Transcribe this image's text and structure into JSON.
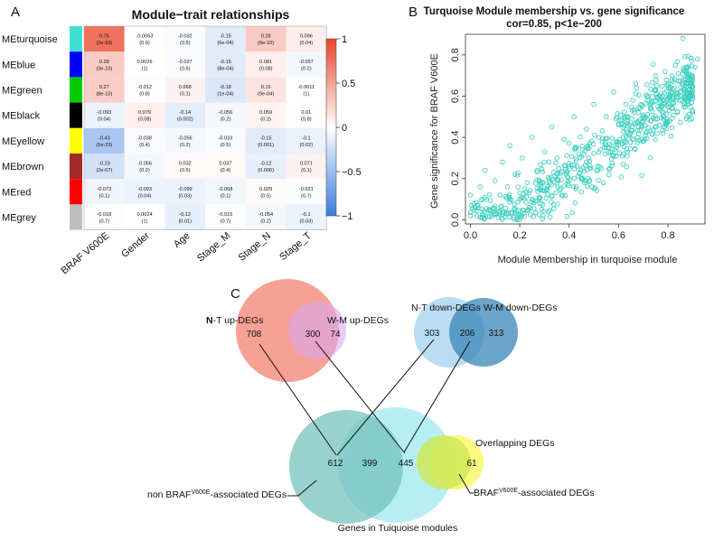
{
  "panels": {
    "a": "A",
    "b": "B",
    "c": "C"
  },
  "chart_data": [
    {
      "type": "heatmap",
      "title": "Module−trait relationships",
      "rows": [
        "MEturquoise",
        "MEblue",
        "MEgreen",
        "MEblack",
        "MEyellow",
        "MEbrown",
        "MEred",
        "MEgrey"
      ],
      "row_colors": [
        "#40e0d0",
        "#0000ff",
        "#00cc00",
        "#000000",
        "#ffff00",
        "#a52a2a",
        "#ff0000",
        "#bebebe"
      ],
      "columns": [
        "BRAF V600E",
        "Gender",
        "Age",
        "Stage_M",
        "Stage_N",
        "Stage_T"
      ],
      "values": [
        [
          0.76,
          -0.0063,
          -0.032,
          -0.15,
          0.28,
          0.096
        ],
        [
          0.28,
          0.0026,
          -0.027,
          -0.15,
          0.081,
          -0.057
        ],
        [
          0.27,
          -0.012,
          0.068,
          -0.18,
          0.15,
          -0.0011
        ],
        [
          -0.093,
          0.079,
          -0.14,
          -0.056,
          0.059,
          0.01
        ],
        [
          -0.43,
          -0.038,
          -0.056,
          -0.033,
          -0.15,
          -0.1
        ],
        [
          -0.23,
          -0.056,
          0.032,
          0.037,
          -0.12,
          0.071
        ],
        [
          -0.073,
          -0.093,
          -0.099,
          -0.068,
          0.029,
          -0.021
        ],
        [
          -0.018,
          0.0024,
          -0.12,
          -0.015,
          -0.054,
          -0.1
        ]
      ],
      "value_labels": [
        [
          "0.76",
          "-0.0063",
          "-0.032",
          "-0.15",
          "0.28",
          "0.096"
        ],
        [
          "0.28",
          "0.0026",
          "-0.027",
          "-0.15",
          "0.081",
          "-0.057"
        ],
        [
          "0.27",
          "-0.012",
          "0.068",
          "-0.18",
          "0.15",
          "-0.0011"
        ],
        [
          "-0.093",
          "0.079",
          "-0.14",
          "-0.056",
          "0.059",
          "0.01"
        ],
        [
          "-0.43",
          "-0.038",
          "-0.056",
          "-0.033",
          "-0.15",
          "-0.1"
        ],
        [
          "-0.23",
          "-0.056",
          "0.032",
          "0.037",
          "-0.12",
          "0.071"
        ],
        [
          "-0.073",
          "-0.093",
          "-0.099",
          "-0.068",
          "0.029",
          "-0.021"
        ],
        [
          "-0.018",
          "0.0024",
          "-0.12",
          "-0.015",
          "-0.054",
          "-0.1"
        ]
      ],
      "p_labels": [
        [
          "(2e-93)",
          "(0.9)",
          "(0.5)",
          "(6e-04)",
          "(6e-10)",
          "(0.04)"
        ],
        [
          "(3e-10)",
          "(1)",
          "(0.6)",
          "(8e-04)",
          "(0.08)",
          "(0.2)"
        ],
        [
          "(8e-10)",
          "(0.8)",
          "(0.1)",
          "(1e-04)",
          "(9e-04)",
          "(1)"
        ],
        [
          "(0.04)",
          "(0.08)",
          "(0.002)",
          "(0.2)",
          "(0.2)",
          "(0.8)"
        ],
        [
          "(1e-23)",
          "(0.4)",
          "(0.2)",
          "(0.5)",
          "(0.001)",
          "(0.02)"
        ],
        [
          "(2e-07)",
          "(0.2)",
          "(0.5)",
          "(0.4)",
          "(0.006)",
          "(0.1)"
        ],
        [
          "(0.1)",
          "(0.04)",
          "(0.03)",
          "(0.1)",
          "(0.5)",
          "(0.7)"
        ],
        [
          "(0.7)",
          "(1)",
          "(0.01)",
          "(0.7)",
          "(0.2)",
          "(0.03)"
        ]
      ],
      "colorbar": {
        "range": [
          -1,
          1
        ],
        "ticks": [
          1,
          0.5,
          0,
          -0.5,
          -1
        ],
        "tick_labels": [
          "1",
          "0.5",
          "0",
          "−0.5",
          "−1"
        ],
        "colors": {
          "low": "#3b7bdb",
          "mid": "#ffffff",
          "high": "#e8452b"
        }
      }
    },
    {
      "type": "scatter",
      "title": "Turquoise Module membership vs. gene significance",
      "subtitle": "cor=0.85, p<1e−200",
      "xlabel": "Module Membership in turquoise module",
      "ylabel": "Gene significance for BRAF V600E",
      "xlim": [
        -0.02,
        0.95
      ],
      "ylim": [
        -0.02,
        0.9
      ],
      "x_ticks": [
        0.0,
        0.2,
        0.4,
        0.6,
        0.8
      ],
      "x_tick_labels": [
        "0.0",
        "0.2",
        "0.4",
        "0.6",
        "0.8"
      ],
      "y_ticks": [
        0.0,
        0.2,
        0.4,
        0.6,
        0.8
      ],
      "y_tick_labels": [
        "0.0",
        "0.2",
        "0.4",
        "0.6",
        "0.8"
      ],
      "point_color": "#40d0c0",
      "fit": {
        "slope": 0.85,
        "intercept": -0.12,
        "n_points": 650
      },
      "points": [
        [
          0.0,
          0.02
        ],
        [
          0.0,
          0.12
        ],
        [
          0.02,
          0.06
        ],
        [
          0.04,
          0.16
        ],
        [
          0.05,
          0.1
        ],
        [
          0.06,
          0.24
        ],
        [
          0.08,
          0.05
        ],
        [
          0.1,
          0.19
        ],
        [
          0.12,
          0.12
        ],
        [
          0.13,
          0.28
        ],
        [
          0.15,
          0.16
        ],
        [
          0.16,
          0.36
        ],
        [
          0.18,
          0.22
        ],
        [
          0.2,
          0.1
        ],
        [
          0.21,
          0.3
        ],
        [
          0.23,
          0.18
        ],
        [
          0.25,
          0.4
        ],
        [
          0.27,
          0.24
        ],
        [
          0.28,
          0.08
        ],
        [
          0.3,
          0.33
        ],
        [
          0.32,
          0.2
        ],
        [
          0.33,
          0.45
        ],
        [
          0.35,
          0.3
        ],
        [
          0.37,
          0.12
        ],
        [
          0.38,
          0.39
        ],
        [
          0.4,
          0.26
        ],
        [
          0.42,
          0.5
        ],
        [
          0.43,
          0.35
        ],
        [
          0.45,
          0.2
        ],
        [
          0.47,
          0.44
        ],
        [
          0.48,
          0.3
        ],
        [
          0.5,
          0.56
        ],
        [
          0.52,
          0.4
        ],
        [
          0.53,
          0.25
        ],
        [
          0.55,
          0.5
        ],
        [
          0.57,
          0.36
        ],
        [
          0.58,
          0.62
        ],
        [
          0.6,
          0.46
        ],
        [
          0.62,
          0.32
        ],
        [
          0.63,
          0.56
        ],
        [
          0.65,
          0.42
        ],
        [
          0.67,
          0.66
        ],
        [
          0.68,
          0.52
        ],
        [
          0.7,
          0.38
        ],
        [
          0.72,
          0.6
        ],
        [
          0.73,
          0.48
        ],
        [
          0.75,
          0.7
        ],
        [
          0.77,
          0.56
        ],
        [
          0.78,
          0.42
        ],
        [
          0.8,
          0.66
        ],
        [
          0.82,
          0.54
        ],
        [
          0.83,
          0.75
        ],
        [
          0.85,
          0.62
        ],
        [
          0.86,
          0.88
        ],
        [
          0.88,
          0.7
        ],
        [
          0.9,
          0.6
        ],
        [
          0.91,
          0.74
        ],
        [
          0.92,
          0.78
        ]
      ]
    },
    {
      "type": "venn",
      "sets": [
        {
          "name": "N-T  up-DEGs",
          "label_rich": [
            {
              "t": "N",
              "bold": true
            },
            {
              "t": "-T  up-DEGs"
            }
          ],
          "count": "708",
          "color": "#f26d5b",
          "opacity": 0.65
        },
        {
          "name": "W-M  up-DEGs",
          "count": "74",
          "color": "#d8a6ee",
          "opacity": 0.75
        },
        {
          "name": "N-T  down-DEGs",
          "count": "303",
          "color": "#a9d4f0",
          "opacity": 0.75
        },
        {
          "name": "W-M  down-DEGs",
          "count": "313",
          "color": "#3a86b6",
          "opacity": 0.85
        },
        {
          "name": "non BRAF V600E-associated DEGs",
          "count": "612",
          "color": "#6dbfb8",
          "opacity": 0.75
        },
        {
          "name": "Genes in Tuiquoise modules",
          "count": "",
          "color": "#7be0ea",
          "opacity": 0.6
        },
        {
          "name": "BRAF V600E-associated DEGs",
          "count": "445",
          "color": "#cfe95a",
          "opacity": 0.85
        },
        {
          "name": "Overlapping DEGs",
          "count": "61",
          "color": "#fcf86a",
          "opacity": 0.85
        }
      ],
      "intersections": {
        "up_overlap": "300",
        "down_overlap": "206",
        "middle_overlap": "399"
      },
      "labels": {
        "nt_up_bold": "N",
        "nt_up_rest": "-T  up-DEGs",
        "wm_up": "W-M  up-DEGs",
        "nt_down": "N-T  down-DEGs",
        "wm_down": "W-M  down-DEGs",
        "overlapping": "Overlapping DEGs",
        "non_braf_prefix": "non BRAF",
        "braf_sup": "V600E",
        "non_braf_suffix": "-associated DEGs",
        "braf_prefix": "BRAF",
        "braf_suffix": "-associated DEGs",
        "turquoise": "Genes in Tuiquoise modules"
      }
    }
  ]
}
